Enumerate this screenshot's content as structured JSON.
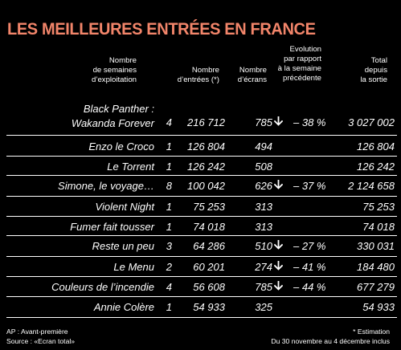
{
  "title": "LES MEILLEURES ENTRÉES EN FRANCE",
  "headers": {
    "weeks": [
      "Nombre",
      "de semaines",
      "d’exploitation"
    ],
    "entries": [
      "Nombre",
      "d’entrées (*)"
    ],
    "screens": [
      "Nombre",
      "d’écrans"
    ],
    "evolution": [
      "Evolution",
      "par rapport",
      "à la semaine",
      "précédente"
    ],
    "total": [
      "Total",
      "depuis",
      "la sortie"
    ]
  },
  "rows": [
    {
      "name": [
        "Black Panther :",
        "Wakanda Forever"
      ],
      "weeks": "4",
      "entries": "216 712",
      "screens": "785",
      "evolution": "– 38 %",
      "trend": "down",
      "total": "3 027 002"
    },
    {
      "name": [
        "Enzo le Croco"
      ],
      "weeks": "1",
      "entries": "126 804",
      "screens": "494",
      "evolution": "",
      "trend": "",
      "total": "126 804"
    },
    {
      "name": [
        "Le Torrent"
      ],
      "weeks": "1",
      "entries": "126 242",
      "screens": "508",
      "evolution": "",
      "trend": "",
      "total": "126 242"
    },
    {
      "name": [
        "Simone, le voyage…"
      ],
      "weeks": "8",
      "entries": "100 042",
      "screens": "626",
      "evolution": "– 37 %",
      "trend": "down",
      "total": "2 124 658"
    },
    {
      "name": [
        "Violent Night"
      ],
      "weeks": "1",
      "entries": "75 253",
      "screens": "313",
      "evolution": "",
      "trend": "",
      "total": "75 253"
    },
    {
      "name": [
        "Fumer fait tousser"
      ],
      "weeks": "1",
      "entries": "74 018",
      "screens": "313",
      "evolution": "",
      "trend": "",
      "total": "74 018"
    },
    {
      "name": [
        "Reste un peu"
      ],
      "weeks": "3",
      "entries": "64 286",
      "screens": "510",
      "evolution": "– 27 %",
      "trend": "down",
      "total": "330 031"
    },
    {
      "name": [
        "Le Menu"
      ],
      "weeks": "2",
      "entries": "60 201",
      "screens": "274",
      "evolution": "– 41 %",
      "trend": "down",
      "total": "184 480"
    },
    {
      "name": [
        "Couleurs de l’incendie"
      ],
      "weeks": "4",
      "entries": "56 608",
      "screens": "785",
      "evolution": "– 44 %",
      "trend": "down",
      "total": "677 279"
    },
    {
      "name": [
        "Annie Colère"
      ],
      "weeks": "1",
      "entries": "54 933",
      "screens": "325",
      "evolution": "",
      "trend": "",
      "total": "54 933"
    }
  ],
  "footer": {
    "left": [
      "AP : Avant-première",
      "Source : «Ecran total»"
    ],
    "right": [
      "* Estimation",
      "Du 30 novembre au 4 décembre inclus"
    ]
  },
  "colors": {
    "title": "#f2856a",
    "background": "#000000",
    "text": "#ffffff"
  }
}
